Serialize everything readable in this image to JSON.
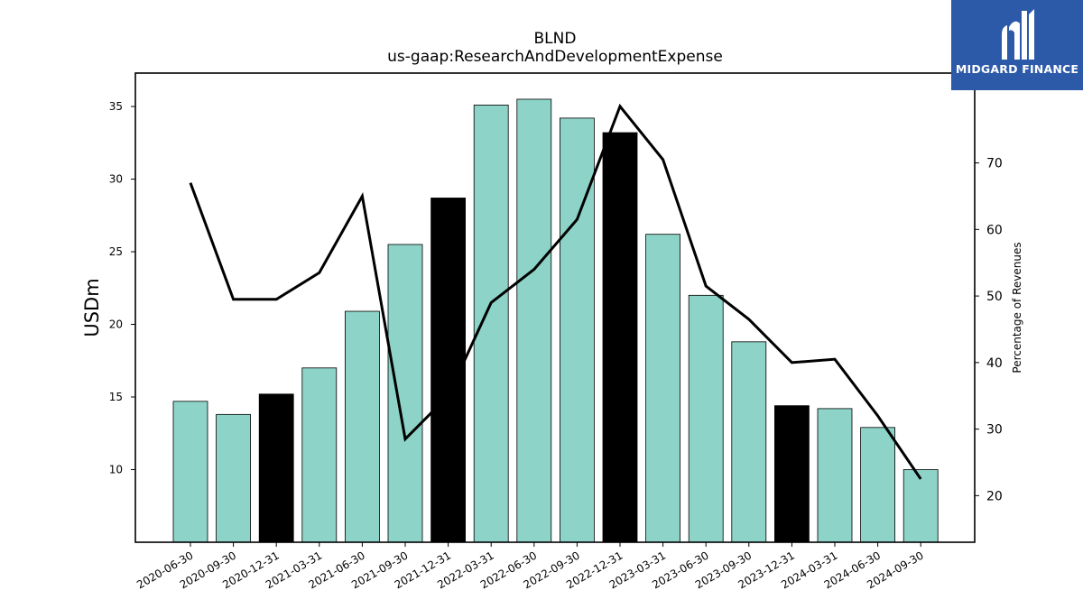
{
  "logo": {
    "text": "MIDGARD FINANCE",
    "background": "#2d5aa8"
  },
  "chart_data": {
    "type": "bar",
    "title": "BLND",
    "subtitle": "us-gaap:ResearchAndDevelopmentExpense",
    "ylabel": "USDm",
    "y2label": "Percentage of Revenues",
    "ylim": [
      5.0,
      37.3
    ],
    "y2lim": [
      13.0,
      83.5
    ],
    "yticks": [
      10,
      15,
      20,
      25,
      30,
      35
    ],
    "y2ticks": [
      20,
      30,
      40,
      50,
      60,
      70
    ],
    "categories": [
      "2020-06-30",
      "2020-09-30",
      "2020-12-31",
      "2021-03-31",
      "2021-06-30",
      "2021-09-30",
      "2021-12-31",
      "2022-03-31",
      "2022-06-30",
      "2022-09-30",
      "2022-12-31",
      "2023-03-31",
      "2023-06-30",
      "2023-09-30",
      "2023-12-31",
      "2024-03-31",
      "2024-06-30",
      "2024-09-30"
    ],
    "series": [
      {
        "values": [
          14.7,
          13.8,
          15.2,
          17.0,
          20.9,
          25.5,
          28.7,
          35.1,
          35.5,
          34.2,
          33.2,
          26.2,
          22.0,
          18.8,
          14.4,
          14.2,
          12.9,
          10.0
        ],
        "bar_colors": [
          "#8dd3c7",
          "#8dd3c7",
          "#000000",
          "#8dd3c7",
          "#8dd3c7",
          "#8dd3c7",
          "#000000",
          "#8dd3c7",
          "#8dd3c7",
          "#8dd3c7",
          "#000000",
          "#8dd3c7",
          "#8dd3c7",
          "#8dd3c7",
          "#000000",
          "#8dd3c7",
          "#8dd3c7",
          "#8dd3c7"
        ]
      },
      {
        "axis": "right",
        "type": "line",
        "color": "#000000",
        "values": [
          67.0,
          49.5,
          49.5,
          53.5,
          65.0,
          28.5,
          35.0,
          49.0,
          54.0,
          61.5,
          78.5,
          70.5,
          51.5,
          46.5,
          40.0,
          40.5,
          32.0,
          22.5
        ]
      }
    ],
    "grid": false,
    "legend": "none"
  }
}
